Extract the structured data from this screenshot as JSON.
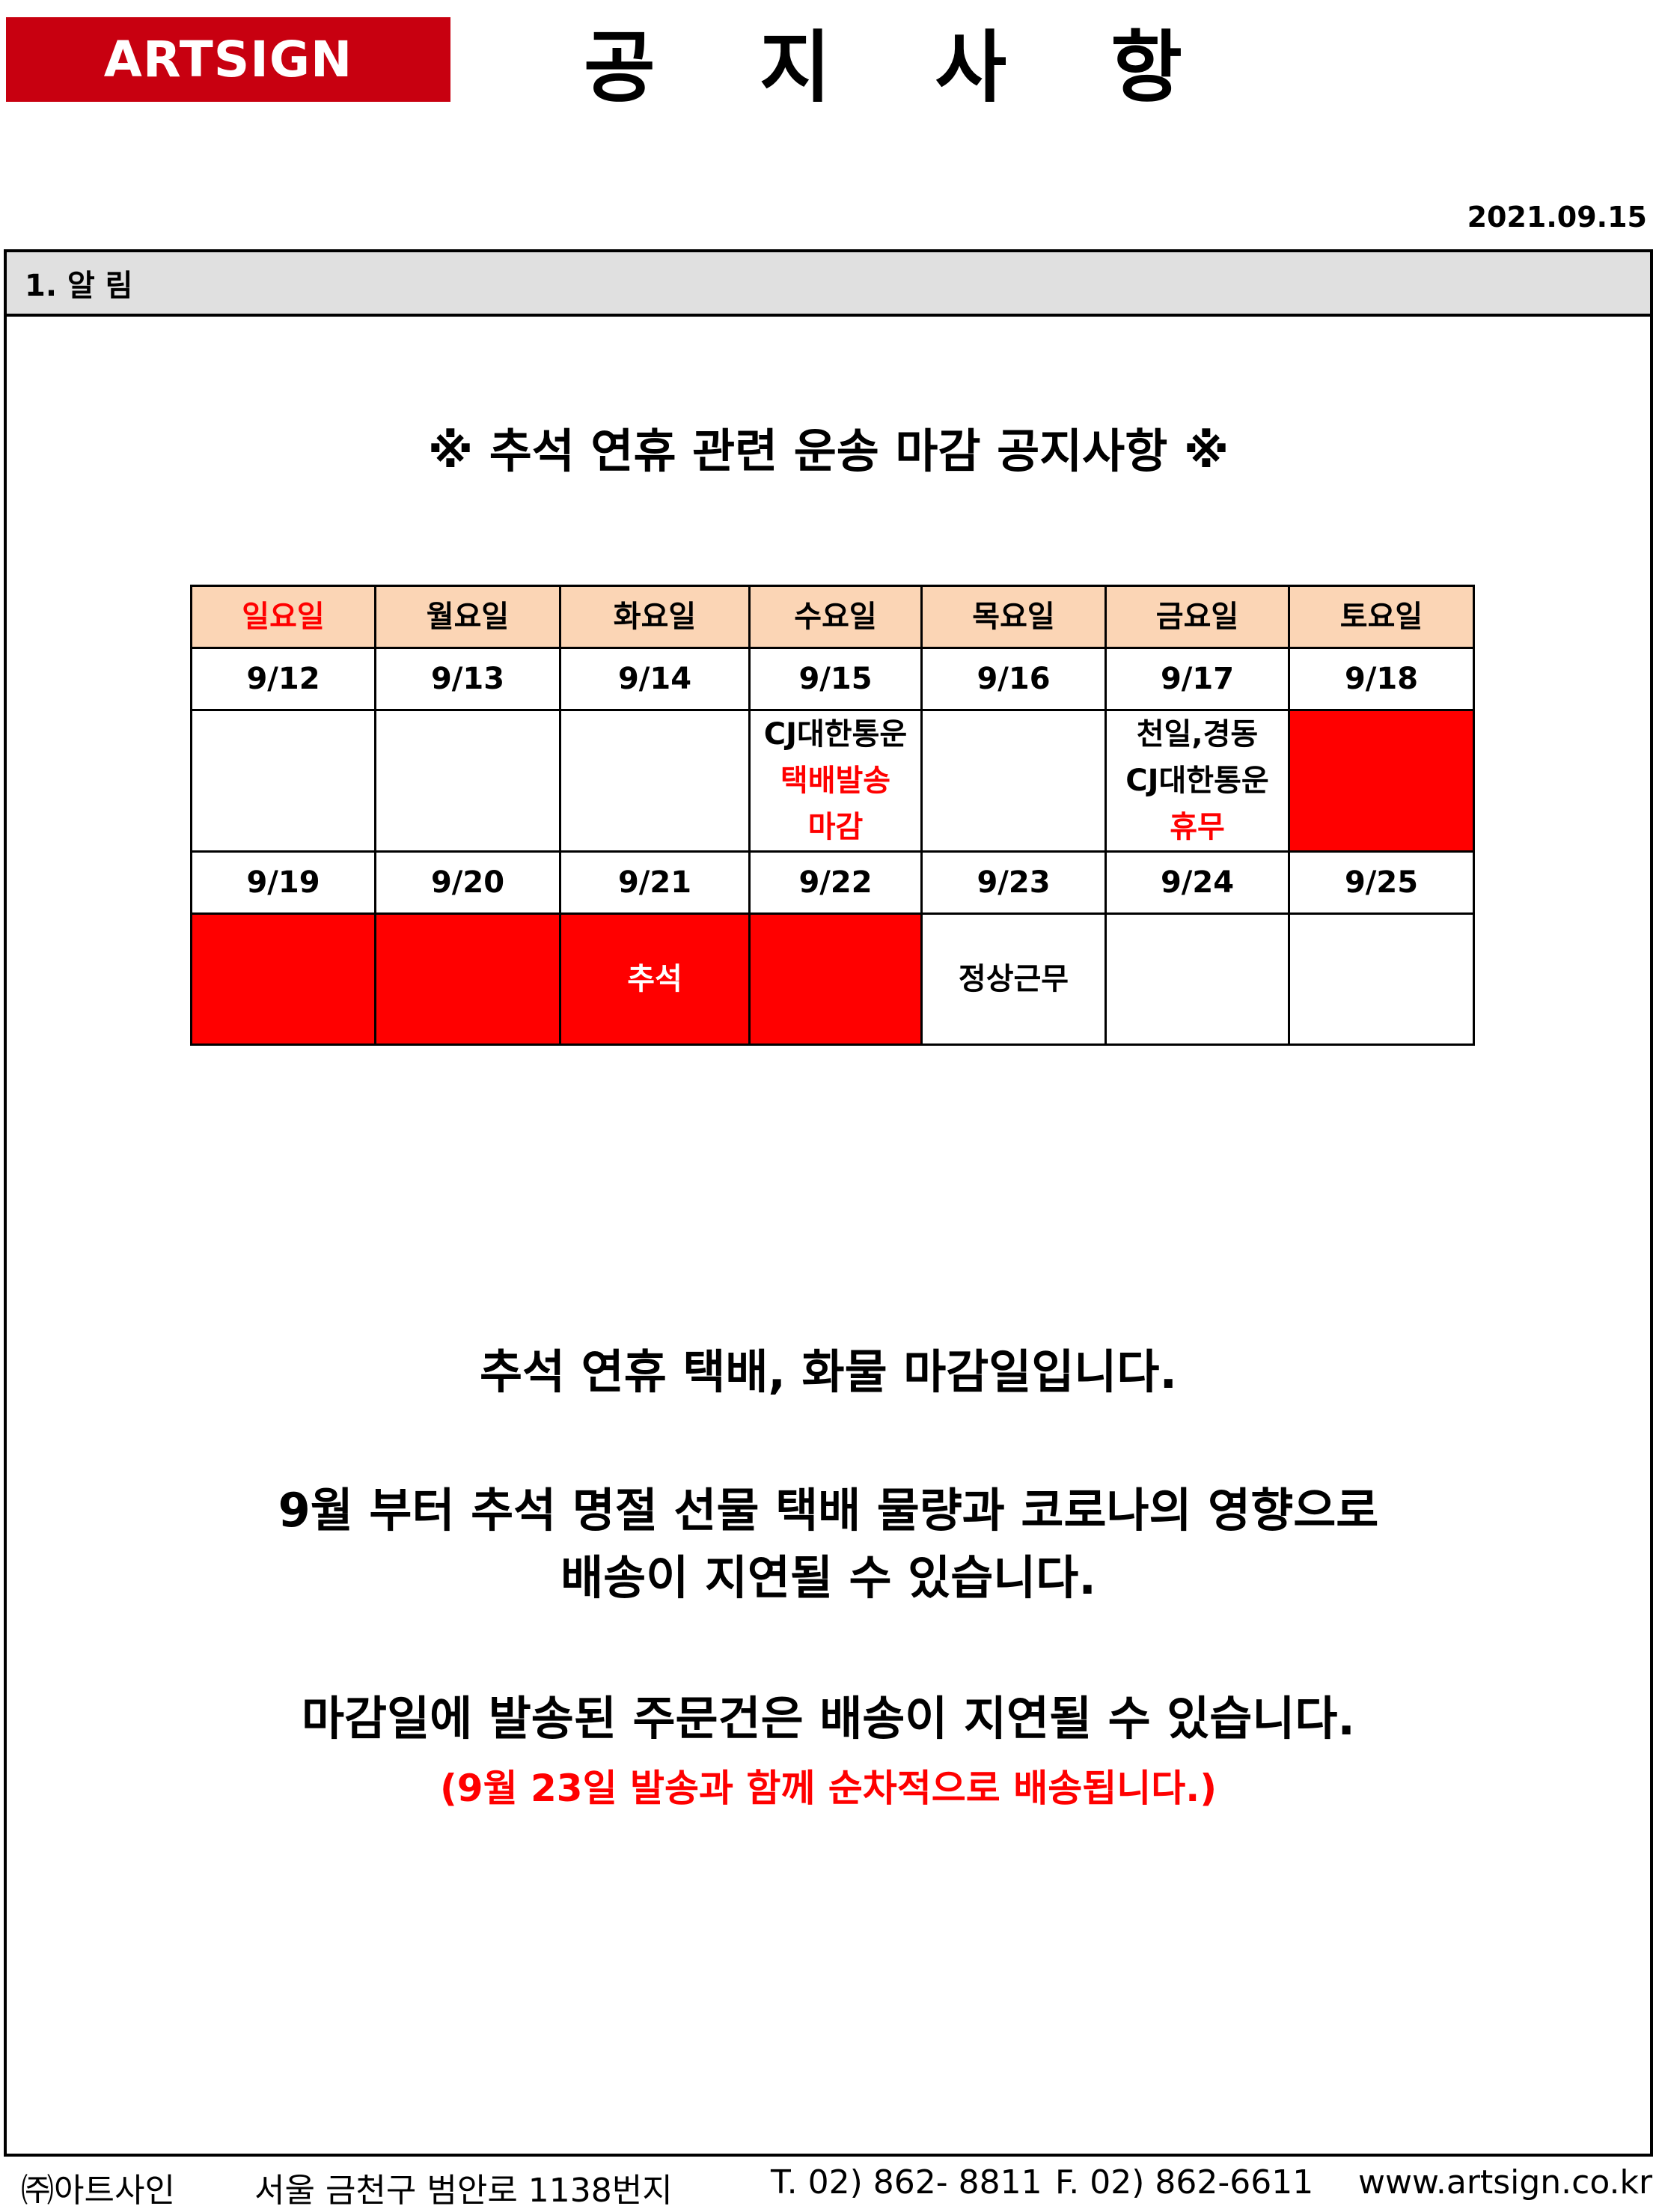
{
  "header": {
    "logo": "ARTSIGN",
    "title_chars": [
      "공",
      "지",
      "사",
      "항"
    ],
    "date": "2021.09.15"
  },
  "section": {
    "heading": "1. 알  림",
    "notice_title": "※ 추석 연휴 관련 운송 마감 공지사항 ※"
  },
  "calendar": {
    "days": [
      "일요일",
      "월요일",
      "화요일",
      "수요일",
      "목요일",
      "금요일",
      "토요일"
    ],
    "week1_dates": [
      "9/12",
      "9/13",
      "9/14",
      "9/15",
      "9/16",
      "9/17",
      "9/18"
    ],
    "week1_notes": {
      "wed": [
        "CJ대한통운",
        "택배발송",
        "마감"
      ],
      "fri": [
        "천일,경동",
        "CJ대한통운",
        "휴무"
      ]
    },
    "week2_dates": [
      "9/19",
      "9/20",
      "9/21",
      "9/22",
      "9/23",
      "9/24",
      "9/25"
    ],
    "week2_notes": {
      "tue": "추석",
      "thu": "정상근무"
    },
    "colors": {
      "holiday": "#ff0000",
      "header": "#fbd5b5"
    }
  },
  "messages": [
    "추석 연휴 택배, 화물 마감일입니다.",
    "9월 부터 추석 명절 선물 택배 물량과 코로나의 영향으로",
    "배송이 지연될 수 있습니다.",
    "마감일에 발송된 주문건은 배송이 지연될 수 있습니다.",
    "(9월 23일 발송과 함께 순차적으로 배송됩니다.)"
  ],
  "footer": {
    "company": "㈜아트사인",
    "address": "서울 금천구 범안로 1138번지",
    "tel": "T. 02) 862- 8811",
    "fax": "F. 02) 862-6611",
    "website": "www.artsign.co.kr"
  }
}
